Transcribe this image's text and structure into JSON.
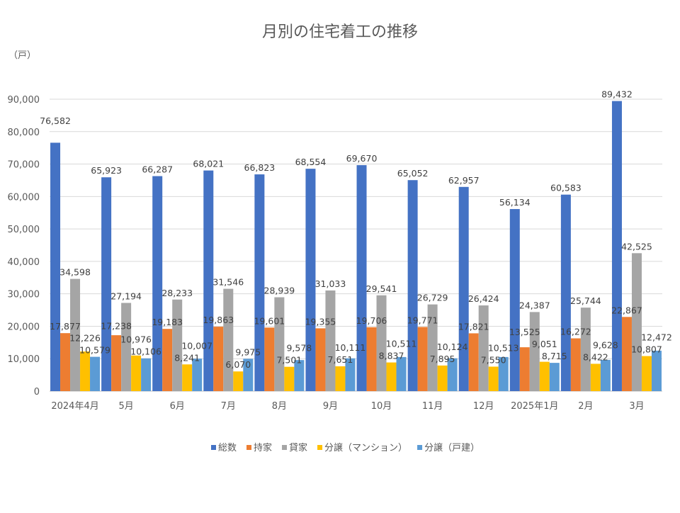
{
  "chart_data": {
    "type": "bar",
    "title": "月別の住宅着工の推移",
    "ylabel": "（戸）",
    "xlabel": "",
    "ylim": [
      0,
      90000
    ],
    "yticks": [
      0,
      10000,
      20000,
      30000,
      40000,
      50000,
      60000,
      70000,
      80000,
      90000
    ],
    "ytick_labels": [
      "0",
      "10,000",
      "20,000",
      "30,000",
      "40,000",
      "50,000",
      "60,000",
      "70,000",
      "80,000",
      "90,000"
    ],
    "grid": true,
    "legend_position": "bottom",
    "categories": [
      "2024年4月",
      "5月",
      "6月",
      "7月",
      "8月",
      "9月",
      "10月",
      "11月",
      "12月",
      "2025年1月",
      "2月",
      "3月"
    ],
    "series": [
      {
        "name": "総数",
        "color": "#4472C4",
        "values": [
          76582,
          65923,
          66287,
          68021,
          66823,
          68554,
          69670,
          65052,
          62957,
          56134,
          60583,
          89432
        ]
      },
      {
        "name": "持家",
        "color": "#ED7D31",
        "values": [
          17877,
          17238,
          19183,
          19863,
          19601,
          19355,
          19706,
          19771,
          17821,
          13525,
          16272,
          22867
        ]
      },
      {
        "name": "貸家",
        "color": "#A5A5A5",
        "values": [
          34598,
          27194,
          28233,
          31546,
          28939,
          31033,
          29541,
          26729,
          26424,
          24387,
          25744,
          42525
        ]
      },
      {
        "name": "分譲（マンション）",
        "color": "#FFC000",
        "values": [
          12226,
          10976,
          8241,
          6070,
          7501,
          7651,
          8837,
          7895,
          7550,
          9051,
          8422,
          10807
        ]
      },
      {
        "name": "分譲（戸建）",
        "color": "#5B9BD5",
        "values": [
          10579,
          10106,
          10007,
          9975,
          9578,
          10111,
          10511,
          10124,
          10513,
          8715,
          9628,
          12472
        ]
      }
    ]
  }
}
